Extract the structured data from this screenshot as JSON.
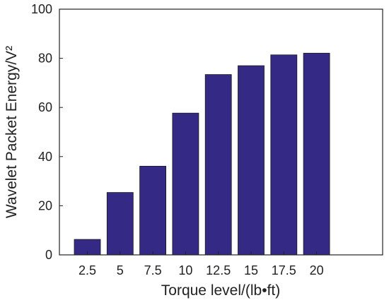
{
  "chart_data": {
    "type": "bar",
    "categories": [
      "2.5",
      "5",
      "7.5",
      "10",
      "12.5",
      "15",
      "17.5",
      "20"
    ],
    "values": [
      6.3,
      25.4,
      36.1,
      57.7,
      73.4,
      77.0,
      81.4,
      82.1
    ],
    "xlabel": "Torque level/(lb•ft)",
    "ylabel": "Wavelet Packet Energy/V²",
    "ylim": [
      0,
      100
    ],
    "yticks": [
      "0",
      "20",
      "40",
      "60",
      "80",
      "100"
    ],
    "grid": false,
    "legend": "none",
    "bar_color": "#342a86",
    "axis_color": "#222222"
  }
}
